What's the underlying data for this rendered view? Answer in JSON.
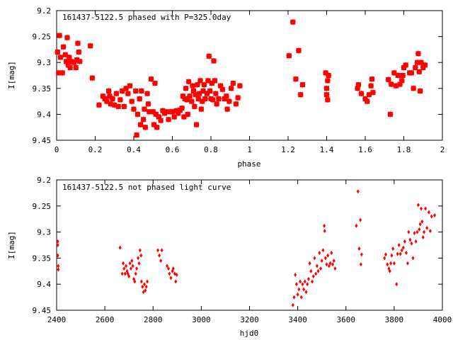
{
  "chart_data": [
    {
      "type": "scatter",
      "title": "161437-5122.5 phased with P=325.0day",
      "xlabel": "phase",
      "ylabel": "I[mag]",
      "xlim": [
        0,
        2
      ],
      "ylim": [
        9.45,
        9.2
      ],
      "y_inverted": true,
      "grid": false,
      "marker_color": "#ff0000",
      "marker": "filled-square-star",
      "x_ticks": [
        "0",
        "0.2",
        "0.4",
        "0.6",
        "0.8",
        "1",
        "1.2",
        "1.4",
        "1.6",
        "1.8",
        "2"
      ],
      "y_ticks": [
        "9.2",
        "9.25",
        "9.3",
        "9.35",
        "9.4",
        "9.45"
      ],
      "points": [
        [
          0.005,
          9.28
        ],
        [
          0.01,
          9.32
        ],
        [
          0.015,
          9.248
        ],
        [
          0.02,
          9.29
        ],
        [
          0.03,
          9.32
        ],
        [
          0.035,
          9.27
        ],
        [
          0.045,
          9.285
        ],
        [
          0.05,
          9.298
        ],
        [
          0.055,
          9.252
        ],
        [
          0.06,
          9.305
        ],
        [
          0.065,
          9.29
        ],
        [
          0.07,
          9.31
        ],
        [
          0.075,
          9.298
        ],
        [
          0.09,
          9.3
        ],
        [
          0.1,
          9.31
        ],
        [
          0.105,
          9.295
        ],
        [
          0.11,
          9.263
        ],
        [
          0.115,
          9.28
        ],
        [
          0.12,
          9.298
        ],
        [
          0.175,
          9.268
        ],
        [
          0.185,
          9.33
        ],
        [
          0.22,
          9.382
        ],
        [
          0.24,
          9.365
        ],
        [
          0.25,
          9.37
        ],
        [
          0.26,
          9.375
        ],
        [
          0.27,
          9.355
        ],
        [
          0.275,
          9.365
        ],
        [
          0.28,
          9.38
        ],
        [
          0.29,
          9.37
        ],
        [
          0.3,
          9.382
        ],
        [
          0.31,
          9.36
        ],
        [
          0.32,
          9.385
        ],
        [
          0.33,
          9.372
        ],
        [
          0.34,
          9.355
        ],
        [
          0.35,
          9.385
        ],
        [
          0.36,
          9.35
        ],
        [
          0.37,
          9.36
        ],
        [
          0.38,
          9.345
        ],
        [
          0.39,
          9.375
        ],
        [
          0.4,
          9.39
        ],
        [
          0.41,
          9.355
        ],
        [
          0.415,
          9.44
        ],
        [
          0.42,
          9.4
        ],
        [
          0.43,
          9.37
        ],
        [
          0.435,
          9.42
        ],
        [
          0.44,
          9.355
        ],
        [
          0.45,
          9.41
        ],
        [
          0.455,
          9.39
        ],
        [
          0.46,
          9.425
        ],
        [
          0.47,
          9.36
        ],
        [
          0.475,
          9.38
        ],
        [
          0.48,
          9.395
        ],
        [
          0.49,
          9.332
        ],
        [
          0.5,
          9.395
        ],
        [
          0.505,
          9.42
        ],
        [
          0.51,
          9.34
        ],
        [
          0.515,
          9.4
        ],
        [
          0.52,
          9.425
        ],
        [
          0.53,
          9.405
        ],
        [
          0.54,
          9.412
        ],
        [
          0.55,
          9.393
        ],
        [
          0.56,
          9.398
        ],
        [
          0.57,
          9.395
        ],
        [
          0.58,
          9.41
        ],
        [
          0.59,
          9.395
        ],
        [
          0.6,
          9.395
        ],
        [
          0.61,
          9.405
        ],
        [
          0.62,
          9.393
        ],
        [
          0.63,
          9.398
        ],
        [
          0.64,
          9.392
        ],
        [
          0.65,
          9.388
        ],
        [
          0.655,
          9.365
        ],
        [
          0.66,
          9.405
        ],
        [
          0.665,
          9.37
        ],
        [
          0.67,
          9.35
        ],
        [
          0.675,
          9.372
        ],
        [
          0.68,
          9.4
        ],
        [
          0.685,
          9.337
        ],
        [
          0.69,
          9.365
        ],
        [
          0.7,
          9.375
        ],
        [
          0.705,
          9.345
        ],
        [
          0.71,
          9.355
        ],
        [
          0.715,
          9.385
        ],
        [
          0.72,
          9.362
        ],
        [
          0.725,
          9.42
        ],
        [
          0.73,
          9.343
        ],
        [
          0.735,
          9.37
        ],
        [
          0.74,
          9.36
        ],
        [
          0.745,
          9.335
        ],
        [
          0.75,
          9.39
        ],
        [
          0.755,
          9.375
        ],
        [
          0.76,
          9.355
        ],
        [
          0.765,
          9.343
        ],
        [
          0.77,
          9.37
        ],
        [
          0.78,
          9.36
        ],
        [
          0.785,
          9.335
        ],
        [
          0.79,
          9.288
        ],
        [
          0.795,
          9.355
        ],
        [
          0.8,
          9.37
        ],
        [
          0.805,
          9.34
        ],
        [
          0.81,
          9.372
        ],
        [
          0.815,
          9.297
        ],
        [
          0.82,
          9.335
        ],
        [
          0.825,
          9.36
        ],
        [
          0.83,
          9.38
        ],
        [
          0.84,
          9.37
        ],
        [
          0.85,
          9.345
        ],
        [
          0.86,
          9.352
        ],
        [
          0.87,
          9.37
        ],
        [
          0.88,
          9.365
        ],
        [
          0.885,
          9.39
        ],
        [
          0.895,
          9.375
        ],
        [
          0.905,
          9.35
        ],
        [
          0.915,
          9.34
        ],
        [
          0.93,
          9.38
        ],
        [
          0.94,
          9.368
        ],
        [
          0.95,
          9.345
        ],
        [
          1.205,
          9.287
        ],
        [
          1.225,
          9.222
        ],
        [
          1.24,
          9.332
        ],
        [
          1.255,
          9.277
        ],
        [
          1.265,
          9.362
        ],
        [
          1.275,
          9.343
        ],
        [
          1.395,
          9.32
        ],
        [
          1.4,
          9.35
        ],
        [
          1.4,
          9.362
        ],
        [
          1.405,
          9.372
        ],
        [
          1.405,
          9.335
        ],
        [
          1.41,
          9.325
        ],
        [
          1.56,
          9.35
        ],
        [
          1.565,
          9.343
        ],
        [
          1.58,
          9.36
        ],
        [
          1.6,
          9.37
        ],
        [
          1.61,
          9.375
        ],
        [
          1.62,
          9.362
        ],
        [
          1.63,
          9.345
        ],
        [
          1.635,
          9.332
        ],
        [
          1.64,
          9.358
        ],
        [
          1.72,
          9.333
        ],
        [
          1.73,
          9.4
        ],
        [
          1.735,
          9.342
        ],
        [
          1.75,
          9.32
        ],
        [
          1.76,
          9.345
        ],
        [
          1.77,
          9.325
        ],
        [
          1.78,
          9.342
        ],
        [
          1.79,
          9.335
        ],
        [
          1.795,
          9.325
        ],
        [
          1.8,
          9.31
        ],
        [
          1.81,
          9.305
        ],
        [
          1.83,
          9.32
        ],
        [
          1.84,
          9.32
        ],
        [
          1.85,
          9.35
        ],
        [
          1.86,
          9.31
        ],
        [
          1.87,
          9.3
        ],
        [
          1.875,
          9.283
        ],
        [
          1.88,
          9.318
        ],
        [
          1.885,
          9.355
        ],
        [
          1.89,
          9.3
        ],
        [
          1.9,
          9.31
        ],
        [
          1.91,
          9.305
        ]
      ]
    },
    {
      "type": "scatter",
      "title": "161437-5122.5 not phased light curve",
      "xlabel": "hjd0",
      "ylabel": "I[mag]",
      "xlim": [
        2400,
        4000
      ],
      "ylim": [
        9.45,
        9.2
      ],
      "y_inverted": true,
      "grid": false,
      "marker_color": "#ff0000",
      "marker": "small-diamond",
      "x_ticks": [
        "2400",
        "2600",
        "2800",
        "3000",
        "3200",
        "3400",
        "3600",
        "3800",
        "4000"
      ],
      "y_ticks": [
        "9.2",
        "9.25",
        "9.3",
        "9.35",
        "9.4",
        "9.45"
      ],
      "points": [
        [
          2405,
          9.318
        ],
        [
          2405,
          9.325
        ],
        [
          2405,
          9.345
        ],
        [
          2407,
          9.365
        ],
        [
          2407,
          9.372
        ],
        [
          2663,
          9.33
        ],
        [
          2672,
          9.38
        ],
        [
          2676,
          9.36
        ],
        [
          2680,
          9.37
        ],
        [
          2684,
          9.38
        ],
        [
          2688,
          9.365
        ],
        [
          2692,
          9.375
        ],
        [
          2696,
          9.38
        ],
        [
          2700,
          9.385
        ],
        [
          2704,
          9.36
        ],
        [
          2708,
          9.37
        ],
        [
          2712,
          9.355
        ],
        [
          2716,
          9.365
        ],
        [
          2720,
          9.39
        ],
        [
          2724,
          9.395
        ],
        [
          2728,
          9.38
        ],
        [
          2732,
          9.37
        ],
        [
          2738,
          9.35
        ],
        [
          2742,
          9.36
        ],
        [
          2746,
          9.335
        ],
        [
          2750,
          9.345
        ],
        [
          2752,
          9.395
        ],
        [
          2756,
          9.405
        ],
        [
          2760,
          9.415
        ],
        [
          2764,
          9.4
        ],
        [
          2768,
          9.412
        ],
        [
          2772,
          9.405
        ],
        [
          2776,
          9.395
        ],
        [
          2820,
          9.335
        ],
        [
          2826,
          9.345
        ],
        [
          2832,
          9.355
        ],
        [
          2836,
          9.335
        ],
        [
          2858,
          9.365
        ],
        [
          2864,
          9.37
        ],
        [
          2868,
          9.38
        ],
        [
          2874,
          9.388
        ],
        [
          2880,
          9.375
        ],
        [
          2884,
          9.37
        ],
        [
          2890,
          9.38
        ],
        [
          2894,
          9.395
        ],
        [
          2898,
          9.382
        ],
        [
          3380,
          9.44
        ],
        [
          3385,
          9.425
        ],
        [
          3390,
          9.382
        ],
        [
          3395,
          9.4
        ],
        [
          3400,
          9.42
        ],
        [
          3405,
          9.41
        ],
        [
          3410,
          9.395
        ],
        [
          3415,
          9.425
        ],
        [
          3420,
          9.4
        ],
        [
          3425,
          9.41
        ],
        [
          3430,
          9.395
        ],
        [
          3435,
          9.415
        ],
        [
          3440,
          9.4
        ],
        [
          3445,
          9.39
        ],
        [
          3450,
          9.36
        ],
        [
          3455,
          9.375
        ],
        [
          3460,
          9.395
        ],
        [
          3465,
          9.385
        ],
        [
          3470,
          9.35
        ],
        [
          3475,
          9.38
        ],
        [
          3480,
          9.365
        ],
        [
          3485,
          9.375
        ],
        [
          3490,
          9.34
        ],
        [
          3495,
          9.37
        ],
        [
          3500,
          9.355
        ],
        [
          3505,
          9.335
        ],
        [
          3510,
          9.288
        ],
        [
          3512,
          9.298
        ],
        [
          3515,
          9.35
        ],
        [
          3520,
          9.362
        ],
        [
          3525,
          9.345
        ],
        [
          3530,
          9.365
        ],
        [
          3535,
          9.36
        ],
        [
          3540,
          9.34
        ],
        [
          3545,
          9.362
        ],
        [
          3550,
          9.355
        ],
        [
          3555,
          9.37
        ],
        [
          3643,
          9.288
        ],
        [
          3650,
          9.222
        ],
        [
          3655,
          9.332
        ],
        [
          3660,
          9.277
        ],
        [
          3662,
          9.362
        ],
        [
          3665,
          9.343
        ],
        [
          3760,
          9.35
        ],
        [
          3765,
          9.343
        ],
        [
          3772,
          9.362
        ],
        [
          3778,
          9.37
        ],
        [
          3782,
          9.375
        ],
        [
          3786,
          9.36
        ],
        [
          3790,
          9.345
        ],
        [
          3795,
          9.332
        ],
        [
          3800,
          9.36
        ],
        [
          3810,
          9.4
        ],
        [
          3814,
          9.342
        ],
        [
          3820,
          9.325
        ],
        [
          3826,
          9.342
        ],
        [
          3832,
          9.335
        ],
        [
          3838,
          9.33
        ],
        [
          3844,
          9.318
        ],
        [
          3850,
          9.34
        ],
        [
          3856,
          9.36
        ],
        [
          3860,
          9.3
        ],
        [
          3866,
          9.315
        ],
        [
          3872,
          9.322
        ],
        [
          3878,
          9.35
        ],
        [
          3884,
          9.302
        ],
        [
          3890,
          9.318
        ],
        [
          3896,
          9.3
        ],
        [
          3900,
          9.248
        ],
        [
          3904,
          9.295
        ],
        [
          3908,
          9.285
        ],
        [
          3912,
          9.255
        ],
        [
          3916,
          9.28
        ],
        [
          3920,
          9.31
        ],
        [
          3924,
          9.3
        ],
        [
          3930,
          9.255
        ],
        [
          3936,
          9.292
        ],
        [
          3944,
          9.262
        ],
        [
          3950,
          9.298
        ],
        [
          3955,
          9.27
        ],
        [
          3968,
          9.268
        ]
      ]
    }
  ]
}
